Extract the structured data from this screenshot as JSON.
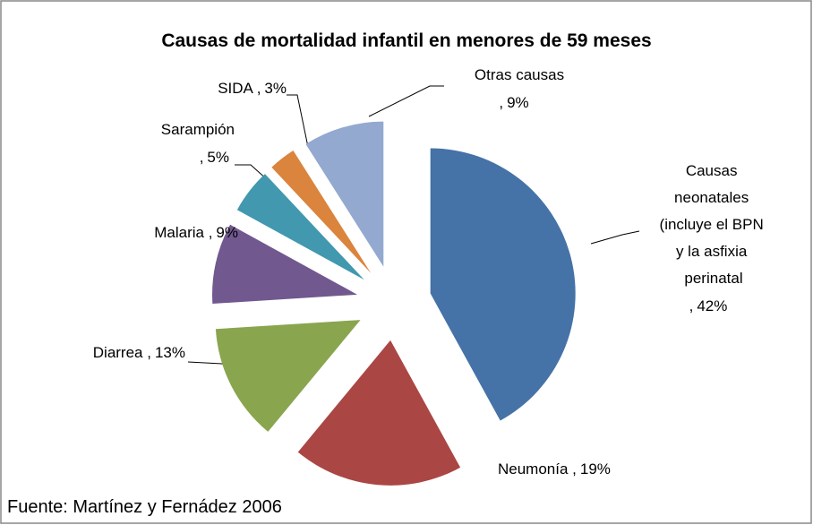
{
  "chart_data": {
    "type": "pie",
    "title": "Causas de mortalidad infantil en menores de 59 meses",
    "categories": [
      "Causas neonatales (incluye el BPN y la asfixia perinatal",
      "Neumonía",
      "Diarrea",
      "Malaria",
      "Sarampión",
      "SIDA",
      "Otras causas"
    ],
    "values": [
      42,
      19,
      13,
      9,
      5,
      3,
      9
    ],
    "value_labels": [
      "42%",
      "19%",
      "13%",
      "9%",
      "5%",
      "3%",
      "9%"
    ],
    "label_separator": ",",
    "colors": [
      "#4572a7",
      "#aa4643",
      "#89a54e",
      "#71588f",
      "#4198af",
      "#db843d",
      "#93a9cf"
    ],
    "source": "Fuente: Martínez y Fernádez 2006"
  }
}
